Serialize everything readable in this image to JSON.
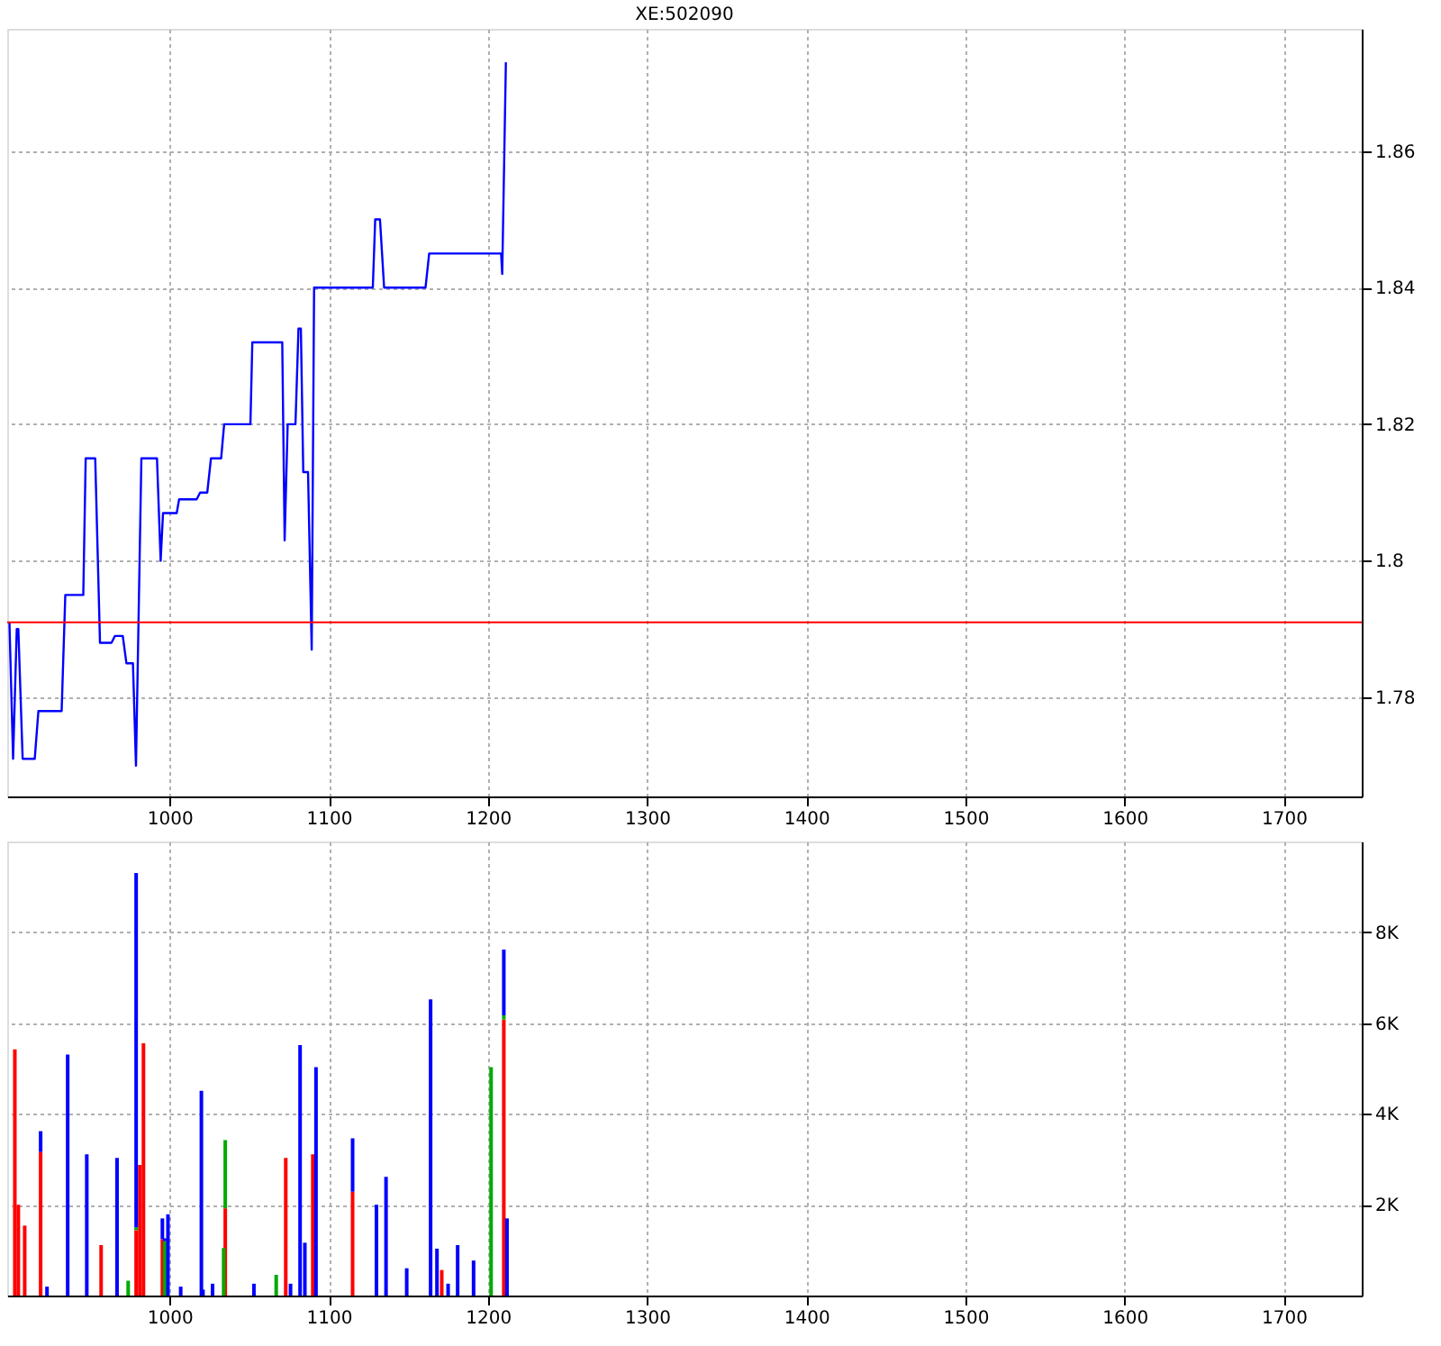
{
  "chart_data": [
    {
      "type": "line",
      "title": "XE:502090",
      "x": [
        899.4,
        901.7,
        904,
        905,
        907.7,
        915.3,
        917.6,
        932.2,
        934.5,
        945.8,
        947.3,
        953.3,
        956.3,
        963.5,
        965.7,
        970.6,
        972.9,
        977,
        978.9,
        982.3,
        992.1,
        994.4,
        995.9,
        1004.5,
        1006,
        1017,
        1019.2,
        1023.7,
        1026,
        1032.4,
        1034.3,
        1050.8,
        1052,
        1070.8,
        1072.3,
        1074.2,
        1079.1,
        1081,
        1082.5,
        1084,
        1087,
        1089.3,
        1090.8,
        1127.7,
        1129.2,
        1132.2,
        1134.8,
        1160.8,
        1163.1,
        1208.3,
        1209,
        1211.3
      ],
      "series": [
        {
          "color": "#0000ff",
          "values": [
            1.791,
            1.771,
            1.79,
            1.79,
            1.771,
            1.771,
            1.778,
            1.778,
            1.795,
            1.795,
            1.815,
            1.815,
            1.788,
            1.788,
            1.789,
            1.789,
            1.785,
            1.785,
            1.77,
            1.815,
            1.815,
            1.8,
            1.807,
            1.807,
            1.809,
            1.809,
            1.81,
            1.81,
            1.815,
            1.815,
            1.82,
            1.82,
            1.832,
            1.832,
            1.803,
            1.82,
            1.82,
            1.834,
            1.834,
            1.813,
            1.813,
            1.787,
            1.84,
            1.84,
            1.85,
            1.85,
            1.84,
            1.84,
            1.845,
            1.845,
            1.842,
            1.873
          ]
        }
      ],
      "xlim": [
        898,
        1749
      ],
      "xticks": [
        1000,
        1100,
        1200,
        1300,
        1400,
        1500,
        1600,
        1700
      ],
      "ylim": [
        1.7655,
        1.8779
      ],
      "yticks": [
        1.78,
        1.8,
        1.82,
        1.84,
        1.86
      ],
      "ref_lines": [
        {
          "axis": "y",
          "value": 1.791,
          "color": "#ff0000"
        }
      ],
      "grid": true,
      "legend": false,
      "line_style": "solid",
      "marker": "none"
    },
    {
      "type": "bar",
      "stacked": true,
      "x": [
        902.8,
        905,
        909,
        919,
        923,
        936,
        948,
        957,
        967,
        974,
        979,
        981.3,
        983.6,
        995.5,
        997,
        999,
        1007,
        1020,
        1021,
        1027,
        1034,
        1035,
        1053,
        1067,
        1073,
        1076,
        1082,
        1085,
        1090,
        1092,
        1115,
        1130,
        1136,
        1149,
        1164,
        1168,
        1171,
        1175,
        1181,
        1191,
        1202,
        1210,
        1212
      ],
      "series": [
        {
          "color": "#ff0000",
          "values": [
            5424,
            2000,
            1540,
            3163,
            null,
            null,
            null,
            1111,
            null,
            null,
            1438,
            2875,
            5555,
            1242,
            null,
            null,
            null,
            null,
            null,
            null,
            null,
            1921,
            null,
            null,
            3032,
            null,
            null,
            null,
            3110,
            null,
            2287,
            null,
            null,
            null,
            null,
            null,
            562,
            null,
            null,
            null,
            null,
            6078,
            null
          ]
        },
        {
          "color": "#00aa00",
          "values": [
            null,
            null,
            null,
            null,
            null,
            null,
            null,
            null,
            null,
            327,
            65,
            null,
            null,
            null,
            1200,
            null,
            null,
            null,
            null,
            null,
            1046,
            1503,
            null,
            457,
            null,
            null,
            null,
            null,
            null,
            null,
            null,
            null,
            null,
            null,
            null,
            null,
            null,
            null,
            null,
            null,
            5032,
            92,
            null
          ]
        },
        {
          "color": "#0000ff",
          "values": [
            null,
            null,
            null,
            457,
            196,
            5306,
            3110,
            null,
            3032,
            null,
            7803,
            null,
            null,
            457,
            60,
            1790,
            196,
            4509,
            130,
            261,
            null,
            null,
            261,
            null,
            null,
            261,
            5515,
            1163,
            null,
            5032,
            1176,
            2000,
            2614,
            601,
            6522,
            1033,
            null,
            261,
            1111,
            771,
            null,
            1450,
            1699
          ]
        }
      ],
      "xlim": [
        898,
        1749
      ],
      "xticks": [
        1000,
        1100,
        1200,
        1300,
        1400,
        1500,
        1600,
        1700
      ],
      "ylim": [
        0,
        10000
      ],
      "yticks": [
        {
          "value": 2000,
          "label": "2K"
        },
        {
          "value": 4000,
          "label": "4K"
        },
        {
          "value": 6000,
          "label": "6K"
        },
        {
          "value": 8000,
          "label": "8K"
        }
      ],
      "grid": true,
      "legend": false
    }
  ]
}
